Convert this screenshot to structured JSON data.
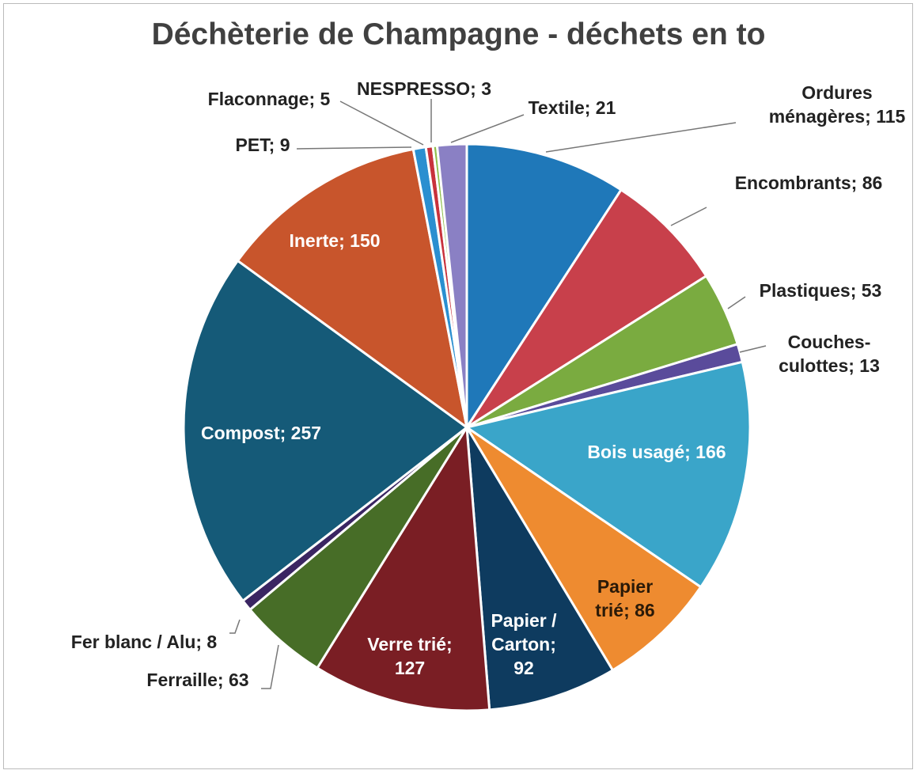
{
  "chart_data": {
    "type": "pie",
    "title": "Déchèterie de Champagne - déchets en to",
    "categories": [
      "Ordures ménagères",
      "Encombrants",
      "Plastiques",
      "Couches-culottes",
      "Bois usagé",
      "Papier trié",
      "Papier / Carton",
      "Verre trié",
      "Ferraille",
      "Fer blanc / Alu",
      "Compost",
      "Inerte",
      "PET",
      "Flaconnage",
      "NESPRESSO",
      "Textile"
    ],
    "values": [
      115,
      86,
      53,
      13,
      166,
      86,
      92,
      127,
      63,
      8,
      257,
      150,
      9,
      5,
      3,
      21
    ],
    "value_labels": [
      "Ordures ménagères; 115",
      "Encombrants; 86",
      "Plastiques; 53",
      "Couches-culottes; 13",
      "Bois usagé; 166",
      "Papier trié; 86",
      "Papier / Carton; 92",
      "Verre trié; 127",
      "Ferraille; 63",
      "Fer blanc / Alu; 8",
      "Compost; 257",
      "Inerte; 150",
      "PET; 9",
      "Flaconnage; 5",
      "NESPRESSO; 3",
      "Textile; 21"
    ],
    "colors": [
      "#1f78b9",
      "#c8404b",
      "#7aab40",
      "#5a4b9b",
      "#3aa5c9",
      "#ee8b30",
      "#0e3b5f",
      "#7a1e24",
      "#476d27",
      "#3a2562",
      "#155a78",
      "#c8552c",
      "#2b8fd0",
      "#c8323c",
      "#8fbf4d",
      "#8a80c4"
    ]
  }
}
